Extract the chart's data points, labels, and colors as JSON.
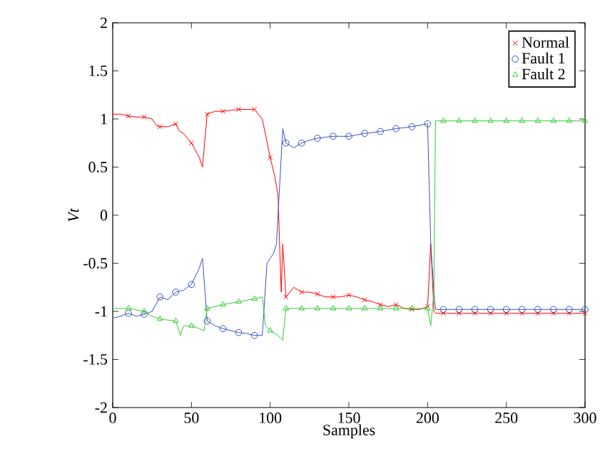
{
  "chart_data": {
    "type": "line",
    "xlabel": "Samples",
    "ylabel": "*Vt*",
    "xlim": [
      0,
      300
    ],
    "ylim": [
      -2,
      2
    ],
    "xticks": [
      0,
      50,
      100,
      150,
      200,
      250,
      300
    ],
    "yticks": [
      -2,
      -1.5,
      -1,
      -0.5,
      0,
      0.5,
      1,
      1.5,
      2
    ],
    "legend": "top right",
    "grid": false,
    "series": [
      {
        "name": "Normal",
        "color": "#ff0000",
        "marker": "cross",
        "x": [
          0,
          5,
          10,
          15,
          20,
          25,
          28,
          30,
          35,
          40,
          42,
          45,
          50,
          55,
          57,
          60,
          65,
          70,
          75,
          80,
          85,
          90,
          95,
          100,
          103,
          105,
          107,
          108,
          110,
          115,
          120,
          125,
          130,
          135,
          140,
          145,
          150,
          155,
          160,
          165,
          170,
          175,
          180,
          185,
          190,
          195,
          200,
          202,
          204,
          205,
          210,
          220,
          230,
          240,
          250,
          260,
          270,
          280,
          290,
          300
        ],
        "values": [
          1.05,
          1.05,
          1.03,
          1.02,
          1.02,
          1.0,
          0.93,
          0.92,
          0.92,
          0.95,
          0.88,
          0.85,
          0.75,
          0.6,
          0.5,
          1.05,
          1.08,
          1.08,
          1.09,
          1.1,
          1.1,
          1.1,
          1.0,
          0.6,
          0.4,
          0.2,
          -0.8,
          -0.3,
          -0.85,
          -0.75,
          -0.8,
          -0.8,
          -0.82,
          -0.85,
          -0.85,
          -0.85,
          -0.83,
          -0.85,
          -0.88,
          -0.9,
          -0.93,
          -0.95,
          -0.93,
          -0.97,
          -0.98,
          -0.98,
          -0.95,
          -0.3,
          -1.0,
          -1.02,
          -1.02,
          -1.02,
          -1.02,
          -1.02,
          -1.02,
          -1.02,
          -1.02,
          -1.02,
          -1.02,
          -1.02
        ]
      },
      {
        "name": "Fault 1",
        "color": "#3b4fc0",
        "marker": "circle",
        "x": [
          0,
          5,
          10,
          15,
          20,
          25,
          30,
          35,
          40,
          45,
          50,
          55,
          57,
          60,
          65,
          70,
          75,
          80,
          85,
          90,
          95,
          98,
          102,
          104,
          106,
          108,
          110,
          115,
          120,
          125,
          130,
          140,
          150,
          160,
          170,
          180,
          190,
          200,
          202,
          204,
          205,
          210,
          220,
          230,
          240,
          250,
          260,
          270,
          280,
          290,
          300
        ],
        "values": [
          -1.07,
          -1.05,
          -1.02,
          -1.05,
          -1.03,
          -1.0,
          -0.85,
          -0.88,
          -0.8,
          -0.78,
          -0.72,
          -0.55,
          -0.45,
          -1.1,
          -1.15,
          -1.18,
          -1.2,
          -1.22,
          -1.23,
          -1.25,
          -1.25,
          -0.5,
          -0.4,
          -0.3,
          0.3,
          0.9,
          0.75,
          0.7,
          0.75,
          0.78,
          0.8,
          0.82,
          0.82,
          0.85,
          0.87,
          0.9,
          0.92,
          0.95,
          -0.3,
          -0.8,
          -0.98,
          -0.98,
          -0.98,
          -0.98,
          -0.98,
          -0.98,
          -0.98,
          -0.98,
          -0.98,
          -0.98,
          -0.98
        ]
      },
      {
        "name": "Fault 2",
        "color": "#33cc33",
        "marker": "triangle",
        "x": [
          0,
          10,
          20,
          25,
          30,
          40,
          43,
          45,
          50,
          55,
          58,
          60,
          70,
          80,
          90,
          95,
          97,
          100,
          105,
          108,
          110,
          120,
          130,
          140,
          150,
          160,
          170,
          180,
          190,
          200,
          202,
          204,
          205,
          210,
          220,
          230,
          240,
          250,
          260,
          270,
          280,
          290,
          300
        ],
        "values": [
          -0.97,
          -0.97,
          -1.0,
          -1.05,
          -1.08,
          -1.1,
          -1.25,
          -1.15,
          -1.15,
          -1.18,
          -1.2,
          -0.97,
          -0.93,
          -0.9,
          -0.87,
          -0.85,
          -1.15,
          -1.2,
          -1.25,
          -1.3,
          -0.97,
          -0.97,
          -0.97,
          -0.97,
          -0.97,
          -0.97,
          -0.97,
          -0.97,
          -0.97,
          -0.97,
          -1.15,
          -0.8,
          0.98,
          0.98,
          0.98,
          0.98,
          0.98,
          0.98,
          0.98,
          0.98,
          0.98,
          0.98,
          0.98
        ]
      }
    ]
  }
}
